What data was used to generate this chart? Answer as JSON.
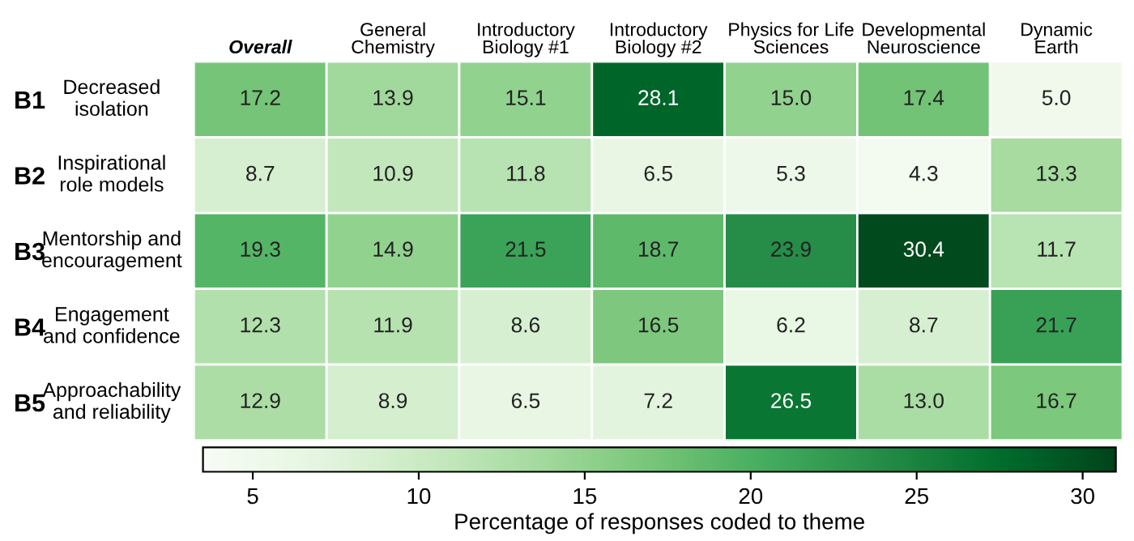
{
  "chart_data": {
    "type": "heatmap",
    "categories": [
      "Overall",
      "General\nChemistry",
      "Introductory\nBiology #1",
      "Introductory\nBiology #2",
      "Physics for Life\nSciences",
      "Developmental\nNeuroscience",
      "Dynamic\nEarth"
    ],
    "y_categories": [
      "B1",
      "B2",
      "B3",
      "B4",
      "B5"
    ],
    "y2_categories": [
      "Decreased\nisolation",
      "Inspirational\nrole models",
      "Mentorship and\nencouragement",
      "Engagement\nand confidence",
      "Approachability\nand reliability"
    ],
    "cells": [
      [
        17.2,
        13.9,
        15.1,
        28.1,
        15.0,
        17.4,
        5.0
      ],
      [
        8.7,
        10.9,
        11.8,
        6.5,
        5.3,
        4.3,
        13.3
      ],
      [
        19.3,
        14.9,
        21.5,
        18.7,
        23.9,
        30.4,
        11.7
      ],
      [
        12.3,
        11.9,
        8.6,
        16.5,
        6.2,
        8.7,
        21.7
      ],
      [
        12.9,
        8.9,
        6.5,
        7.2,
        26.5,
        13.0,
        16.7
      ]
    ],
    "cell_labels": [
      [
        "17.2",
        "13.9",
        "15.1",
        "28.1",
        "15.0",
        "17.4",
        "5.0"
      ],
      [
        "8.7",
        "10.9",
        "11.8",
        "6.5",
        "5.3",
        "4.3",
        "13.3"
      ],
      [
        "19.3",
        "14.9",
        "21.5",
        "18.7",
        "23.9",
        "30.4",
        "11.7"
      ],
      [
        "12.3",
        "11.9",
        "8.6",
        "16.5",
        "6.2",
        "8.7",
        "21.7"
      ],
      [
        "12.9",
        "8.9",
        "6.5",
        "7.2",
        "26.5",
        "13.0",
        "16.7"
      ]
    ],
    "clim": [
      3.5,
      31
    ],
    "cticks": [
      5,
      10,
      15,
      20,
      25,
      30
    ],
    "clabel": "Percentage of responses coded to theme"
  }
}
